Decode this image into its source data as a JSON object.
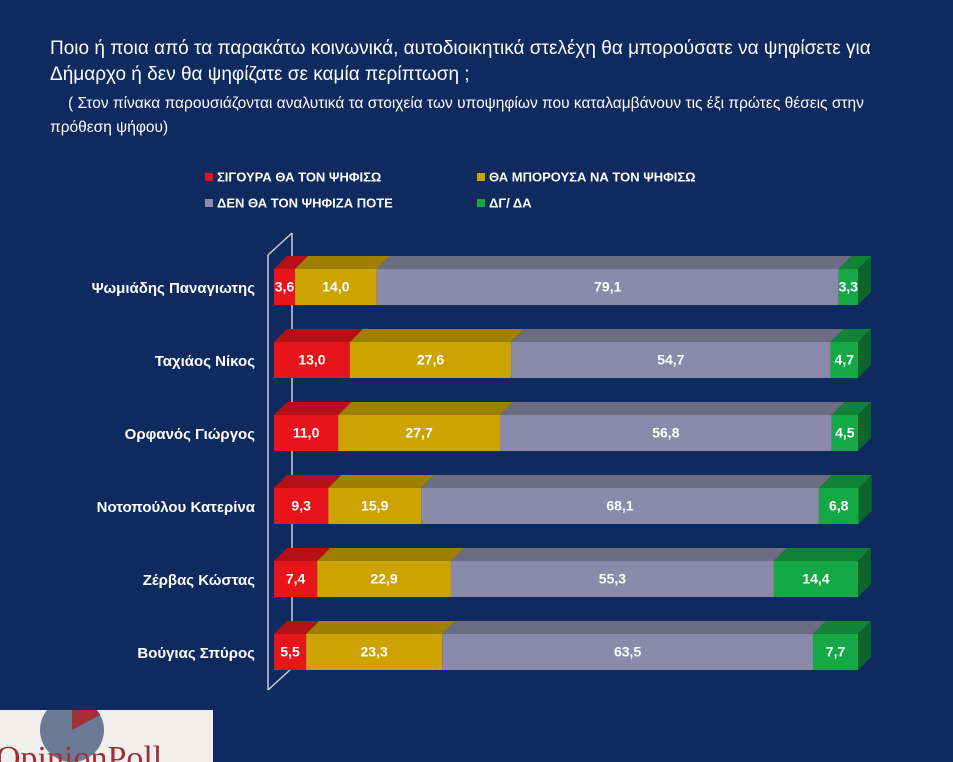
{
  "chart_data": {
    "type": "stacked-bar-horizontal",
    "title": "Ποιο ή ποια από τα παρακάτω κοινωνικά, αυτοδιοικητικά στελέχη θα μπορούσατε να ψηφίσετε για Δήμαρχο ή δεν θα ψηφίζατε σε καμία περίπτωση ;",
    "subtitle": "( Στον πίνακα παρουσιάζονται αναλυτικά τα στοιχεία των υποψηφίων που  καταλαμβάνουν τις έξι πρώτες θέσεις στην πρόθεση ψήφου)",
    "categories": [
      "Ψωμιάδης Παναγιωτης",
      "Ταχιάος Νίκος",
      "Ορφανός Γιώργος",
      "Νοτοπούλου Κατερίνα",
      "Ζέρβας Κώστας",
      "Βούγιας Σπύρος"
    ],
    "series": [
      {
        "name": "ΣΙΓΟΥΡΑ ΘΑ ΤΟΝ ΨΗΦΙΣΩ",
        "color": "#e8141c",
        "values": [
          3.6,
          13.0,
          11.0,
          9.3,
          7.4,
          5.5
        ],
        "value_labels": [
          "3,6",
          "13,0",
          "11,0",
          "9,3",
          "7,4",
          "5,5"
        ]
      },
      {
        "name": "ΘΑ ΜΠΟΡΟΥΣΑ ΝΑ ΤΟΝ ΨΗΦΙΣΩ",
        "color": "#cca300",
        "values": [
          14.0,
          27.6,
          27.7,
          15.9,
          22.9,
          23.3
        ],
        "value_labels": [
          "14,0",
          "27,6",
          "27,7",
          "15,9",
          "22,9",
          "23,3"
        ]
      },
      {
        "name": "ΔΕΝ ΘΑ ΤΟΝ ΨΗΦΙΖΑ ΠΟΤΕ",
        "color": "#8b8aa8",
        "values": [
          79.1,
          54.7,
          56.8,
          68.1,
          55.3,
          63.5
        ],
        "value_labels": [
          "79,1",
          "54,7",
          "56,8",
          "68,1",
          "55,3",
          "63,5"
        ]
      },
      {
        "name": "ΔΓ/ ΔΑ",
        "color": "#15a847",
        "values": [
          3.3,
          4.7,
          4.5,
          6.8,
          14.4,
          7.7
        ],
        "value_labels": [
          "3,3",
          "4,7",
          "4,5",
          "6,8",
          "14,4",
          "7,7"
        ]
      }
    ],
    "xlim": [
      0,
      100
    ]
  },
  "logo": "OpinionPoll"
}
